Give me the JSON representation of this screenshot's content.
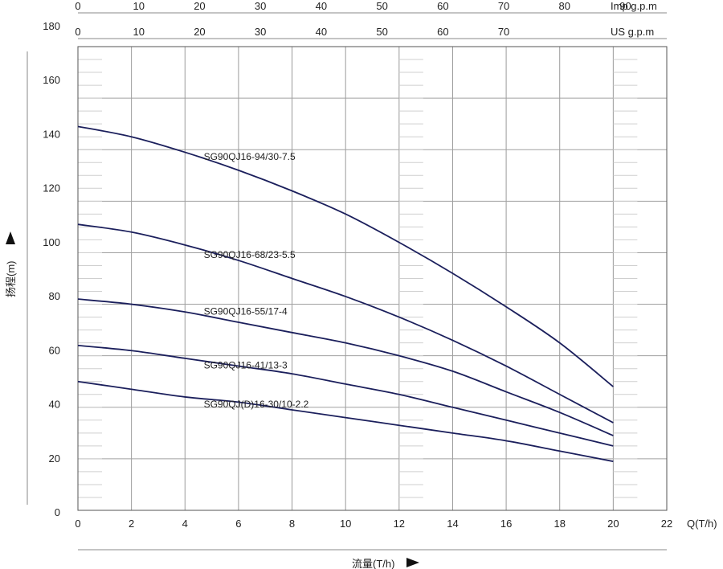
{
  "chart_data": {
    "type": "line",
    "x_axis": {
      "label": "流量(T/h)",
      "unit_label": "Q(T/h)",
      "range": [
        0,
        22
      ],
      "ticks": [
        0,
        2,
        4,
        6,
        8,
        10,
        12,
        14,
        16,
        18,
        20,
        22
      ]
    },
    "y_axis": {
      "label": "扬程(m)",
      "range": [
        0,
        180
      ],
      "ticks": [
        0,
        20,
        40,
        60,
        80,
        100,
        120,
        140,
        160,
        180
      ],
      "tick_labels": [
        "0",
        "20",
        "40",
        "60",
        "80",
        "100",
        "120",
        "140",
        "160",
        "180"
      ]
    },
    "top_axes": [
      {
        "label": "Imp g.p.m",
        "range": [
          0,
          96.8
        ],
        "ticks": [
          0,
          10,
          20,
          30,
          40,
          50,
          60,
          70,
          80,
          90
        ]
      },
      {
        "label": "US g.p.m",
        "range": [
          0,
          96.8
        ],
        "ticks": [
          0,
          10,
          20,
          30,
          40,
          50,
          60,
          70
        ]
      }
    ],
    "grid": true,
    "line_color": "#1b1f5c",
    "series": [
      {
        "name": "SG90QJ16-94/30-7.5",
        "x": [
          0,
          2,
          4,
          6,
          8,
          10,
          12,
          14,
          16,
          18,
          20
        ],
        "y": [
          149,
          145,
          139,
          132,
          124,
          115,
          104,
          92,
          79,
          65,
          48
        ]
      },
      {
        "name": "SG90QJ16-68/23-5.5",
        "x": [
          0,
          2,
          4,
          6,
          8,
          10,
          12,
          14,
          16,
          18,
          20
        ],
        "y": [
          111,
          108,
          103,
          97,
          90,
          83,
          75,
          66,
          56,
          45,
          34
        ]
      },
      {
        "name": "SG90QJ16-55/17-4",
        "x": [
          0,
          2,
          4,
          6,
          8,
          10,
          12,
          14,
          16,
          18,
          20
        ],
        "y": [
          82,
          80,
          77,
          73,
          69,
          65,
          60,
          54,
          46,
          38,
          29
        ]
      },
      {
        "name": "SG90QJ16-41/13-3",
        "x": [
          0,
          2,
          4,
          6,
          8,
          10,
          12,
          14,
          16,
          18,
          20
        ],
        "y": [
          64,
          62,
          59,
          56,
          53,
          49,
          45,
          40,
          35,
          30,
          25
        ]
      },
      {
        "name": "SG90QJ(D)16-30/10-2.2",
        "x": [
          0,
          2,
          4,
          6,
          8,
          10,
          12,
          14,
          16,
          18,
          20
        ],
        "y": [
          50,
          47,
          44,
          42,
          39,
          36,
          33,
          30,
          27,
          23,
          19
        ]
      }
    ],
    "curve_labels": [
      {
        "text": "SG90QJ16-94/30-7.5",
        "x": 4.7,
        "y": 136
      },
      {
        "text": "SG90QJ16-68/23-5.5",
        "x": 4.7,
        "y": 98
      },
      {
        "text": "SG90QJ16-55/17-4",
        "x": 4.7,
        "y": 76
      },
      {
        "text": "SG90QJ16-41/13-3",
        "x": 4.7,
        "y": 55
      },
      {
        "text": "SG90QJ(D)16-30/10-2.2",
        "x": 4.7,
        "y": 40
      }
    ]
  }
}
